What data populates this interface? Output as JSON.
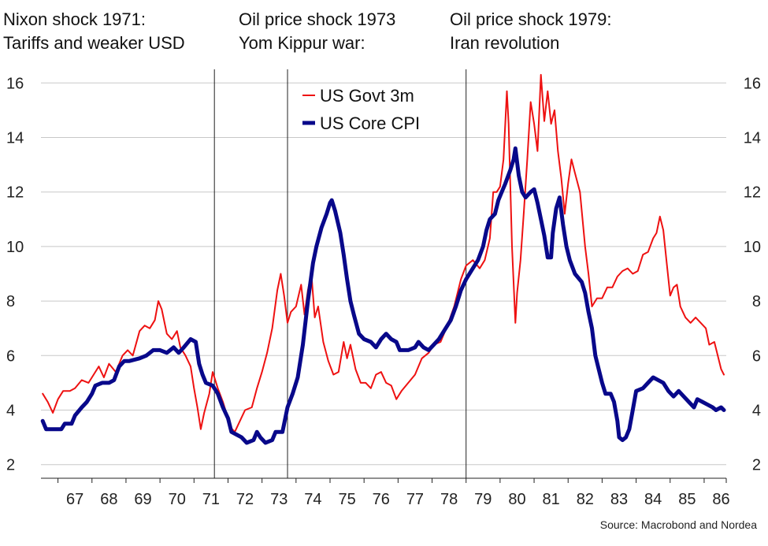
{
  "chart_data": {
    "type": "line",
    "title": "",
    "xlabel": "",
    "ylabel": "",
    "ylim": [
      1.5,
      16.5
    ],
    "xlim": [
      1966.5,
      1986.65
    ],
    "y_ticks": [
      2,
      4,
      6,
      8,
      10,
      12,
      14,
      16
    ],
    "y_tick_labels": [
      "2",
      "4",
      "6",
      "8",
      "10",
      "12",
      "14",
      "16"
    ],
    "x_ticks": [
      1967,
      1968,
      1969,
      1970,
      1971,
      1972,
      1973,
      1974,
      1975,
      1976,
      1977,
      1978,
      1979,
      1980,
      1981,
      1982,
      1983,
      1984,
      1985,
      1986
    ],
    "x_tick_labels": [
      "67",
      "68",
      "69",
      "70",
      "71",
      "72",
      "73",
      "74",
      "75",
      "76",
      "77",
      "78",
      "79",
      "80",
      "81",
      "82",
      "83",
      "84",
      "85",
      "86"
    ],
    "grid": "horizontal",
    "event_lines": [
      1971.6,
      1973.75,
      1979.0
    ],
    "annotations": [
      {
        "line1": "Nixon shock 1971:",
        "line2": "Tariffs and weaker USD"
      },
      {
        "line1": "Oil price shock 1973",
        "line2": "Yom Kippur war:"
      },
      {
        "line1": "Oil price shock 1979:",
        "line2": "Iran revolution"
      }
    ],
    "series": [
      {
        "name": "US Govt 3m",
        "color": "#ee1111",
        "style": "thin",
        "points": [
          [
            1966.55,
            4.6
          ],
          [
            1966.7,
            4.3
          ],
          [
            1966.85,
            3.9
          ],
          [
            1967.0,
            4.4
          ],
          [
            1967.15,
            4.7
          ],
          [
            1967.35,
            4.7
          ],
          [
            1967.5,
            4.8
          ],
          [
            1967.7,
            5.1
          ],
          [
            1967.9,
            5.0
          ],
          [
            1968.05,
            5.3
          ],
          [
            1968.2,
            5.6
          ],
          [
            1968.35,
            5.2
          ],
          [
            1968.5,
            5.7
          ],
          [
            1968.7,
            5.4
          ],
          [
            1968.9,
            6.0
          ],
          [
            1969.05,
            6.2
          ],
          [
            1969.2,
            6.0
          ],
          [
            1969.4,
            6.9
          ],
          [
            1969.55,
            7.1
          ],
          [
            1969.7,
            7.0
          ],
          [
            1969.85,
            7.3
          ],
          [
            1969.95,
            8.0
          ],
          [
            1970.05,
            7.7
          ],
          [
            1970.2,
            6.8
          ],
          [
            1970.35,
            6.6
          ],
          [
            1970.5,
            6.9
          ],
          [
            1970.6,
            6.3
          ],
          [
            1970.75,
            6.0
          ],
          [
            1970.9,
            5.6
          ],
          [
            1971.0,
            4.8
          ],
          [
            1971.1,
            4.1
          ],
          [
            1971.2,
            3.3
          ],
          [
            1971.3,
            3.9
          ],
          [
            1971.45,
            4.6
          ],
          [
            1971.55,
            5.4
          ],
          [
            1971.7,
            4.8
          ],
          [
            1971.85,
            4.3
          ],
          [
            1971.95,
            3.9
          ],
          [
            1972.05,
            3.4
          ],
          [
            1972.2,
            3.2
          ],
          [
            1972.35,
            3.6
          ],
          [
            1972.5,
            4.0
          ],
          [
            1972.7,
            4.1
          ],
          [
            1972.85,
            4.8
          ],
          [
            1973.0,
            5.4
          ],
          [
            1973.15,
            6.1
          ],
          [
            1973.3,
            7.0
          ],
          [
            1973.45,
            8.4
          ],
          [
            1973.55,
            9.0
          ],
          [
            1973.65,
            8.2
          ],
          [
            1973.75,
            7.2
          ],
          [
            1973.85,
            7.6
          ],
          [
            1974.0,
            7.8
          ],
          [
            1974.15,
            8.6
          ],
          [
            1974.25,
            7.5
          ],
          [
            1974.35,
            8.4
          ],
          [
            1974.45,
            9.0
          ],
          [
            1974.55,
            7.4
          ],
          [
            1974.65,
            7.8
          ],
          [
            1974.8,
            6.5
          ],
          [
            1974.95,
            5.8
          ],
          [
            1975.1,
            5.3
          ],
          [
            1975.25,
            5.4
          ],
          [
            1975.4,
            6.5
          ],
          [
            1975.5,
            5.9
          ],
          [
            1975.6,
            6.4
          ],
          [
            1975.75,
            5.5
          ],
          [
            1975.9,
            5.0
          ],
          [
            1976.05,
            5.0
          ],
          [
            1976.2,
            4.8
          ],
          [
            1976.35,
            5.3
          ],
          [
            1976.5,
            5.4
          ],
          [
            1976.65,
            5.0
          ],
          [
            1976.8,
            4.9
          ],
          [
            1976.95,
            4.4
          ],
          [
            1977.1,
            4.7
          ],
          [
            1977.3,
            5.0
          ],
          [
            1977.5,
            5.3
          ],
          [
            1977.7,
            5.9
          ],
          [
            1977.9,
            6.1
          ],
          [
            1978.05,
            6.4
          ],
          [
            1978.25,
            6.5
          ],
          [
            1978.45,
            7.1
          ],
          [
            1978.65,
            7.8
          ],
          [
            1978.85,
            8.8
          ],
          [
            1979.0,
            9.3
          ],
          [
            1979.2,
            9.5
          ],
          [
            1979.4,
            9.2
          ],
          [
            1979.55,
            9.5
          ],
          [
            1979.7,
            10.3
          ],
          [
            1979.8,
            12.0
          ],
          [
            1979.9,
            12.0
          ],
          [
            1980.0,
            12.2
          ],
          [
            1980.1,
            13.2
          ],
          [
            1980.2,
            15.7
          ],
          [
            1980.25,
            14.5
          ],
          [
            1980.35,
            10.0
          ],
          [
            1980.45,
            7.2
          ],
          [
            1980.5,
            8.3
          ],
          [
            1980.6,
            9.5
          ],
          [
            1980.7,
            11.3
          ],
          [
            1980.8,
            13.2
          ],
          [
            1980.9,
            15.3
          ],
          [
            1981.0,
            14.5
          ],
          [
            1981.1,
            13.5
          ],
          [
            1981.2,
            16.3
          ],
          [
            1981.3,
            14.6
          ],
          [
            1981.4,
            15.7
          ],
          [
            1981.5,
            14.5
          ],
          [
            1981.6,
            15.0
          ],
          [
            1981.7,
            13.5
          ],
          [
            1981.8,
            12.5
          ],
          [
            1981.9,
            11.2
          ],
          [
            1982.0,
            12.3
          ],
          [
            1982.1,
            13.2
          ],
          [
            1982.2,
            12.7
          ],
          [
            1982.35,
            12.0
          ],
          [
            1982.5,
            10.0
          ],
          [
            1982.6,
            9.0
          ],
          [
            1982.7,
            7.8
          ],
          [
            1982.85,
            8.1
          ],
          [
            1983.0,
            8.1
          ],
          [
            1983.15,
            8.5
          ],
          [
            1983.3,
            8.5
          ],
          [
            1983.45,
            8.9
          ],
          [
            1983.6,
            9.1
          ],
          [
            1983.75,
            9.2
          ],
          [
            1983.9,
            9.0
          ],
          [
            1984.05,
            9.1
          ],
          [
            1984.2,
            9.7
          ],
          [
            1984.35,
            9.8
          ],
          [
            1984.5,
            10.3
          ],
          [
            1984.6,
            10.5
          ],
          [
            1984.7,
            11.1
          ],
          [
            1984.8,
            10.6
          ],
          [
            1984.9,
            9.4
          ],
          [
            1985.0,
            8.2
          ],
          [
            1985.1,
            8.5
          ],
          [
            1985.2,
            8.6
          ],
          [
            1985.3,
            7.8
          ],
          [
            1985.45,
            7.4
          ],
          [
            1985.6,
            7.2
          ],
          [
            1985.75,
            7.4
          ],
          [
            1985.9,
            7.2
          ],
          [
            1986.05,
            7.0
          ],
          [
            1986.15,
            6.4
          ],
          [
            1986.3,
            6.5
          ],
          [
            1986.4,
            6.0
          ],
          [
            1986.5,
            5.5
          ],
          [
            1986.58,
            5.3
          ]
        ]
      },
      {
        "name": "US Core CPI",
        "color": "#08088a",
        "style": "thick",
        "points": [
          [
            1966.55,
            3.6
          ],
          [
            1966.65,
            3.3
          ],
          [
            1967.1,
            3.3
          ],
          [
            1967.2,
            3.5
          ],
          [
            1967.4,
            3.5
          ],
          [
            1967.5,
            3.8
          ],
          [
            1967.7,
            4.1
          ],
          [
            1967.85,
            4.3
          ],
          [
            1968.0,
            4.6
          ],
          [
            1968.1,
            4.9
          ],
          [
            1968.3,
            5.0
          ],
          [
            1968.5,
            5.0
          ],
          [
            1968.65,
            5.1
          ],
          [
            1968.8,
            5.6
          ],
          [
            1968.95,
            5.8
          ],
          [
            1969.1,
            5.8
          ],
          [
            1969.4,
            5.9
          ],
          [
            1969.6,
            6.0
          ],
          [
            1969.8,
            6.2
          ],
          [
            1970.0,
            6.2
          ],
          [
            1970.2,
            6.1
          ],
          [
            1970.4,
            6.3
          ],
          [
            1970.55,
            6.1
          ],
          [
            1970.7,
            6.3
          ],
          [
            1970.9,
            6.6
          ],
          [
            1971.05,
            6.5
          ],
          [
            1971.15,
            5.7
          ],
          [
            1971.25,
            5.3
          ],
          [
            1971.35,
            5.0
          ],
          [
            1971.55,
            4.9
          ],
          [
            1971.7,
            4.6
          ],
          [
            1971.85,
            4.1
          ],
          [
            1972.0,
            3.7
          ],
          [
            1972.1,
            3.2
          ],
          [
            1972.25,
            3.1
          ],
          [
            1972.4,
            3.0
          ],
          [
            1972.55,
            2.8
          ],
          [
            1972.75,
            2.9
          ],
          [
            1972.85,
            3.2
          ],
          [
            1972.95,
            3.0
          ],
          [
            1973.1,
            2.8
          ],
          [
            1973.3,
            2.9
          ],
          [
            1973.4,
            3.2
          ],
          [
            1973.6,
            3.2
          ],
          [
            1973.75,
            4.1
          ],
          [
            1973.9,
            4.6
          ],
          [
            1974.05,
            5.2
          ],
          [
            1974.2,
            6.4
          ],
          [
            1974.35,
            8.0
          ],
          [
            1974.5,
            9.4
          ],
          [
            1974.6,
            10.0
          ],
          [
            1974.75,
            10.7
          ],
          [
            1974.9,
            11.2
          ],
          [
            1975.0,
            11.6
          ],
          [
            1975.05,
            11.7
          ],
          [
            1975.15,
            11.3
          ],
          [
            1975.3,
            10.5
          ],
          [
            1975.4,
            9.7
          ],
          [
            1975.5,
            8.8
          ],
          [
            1975.6,
            8.0
          ],
          [
            1975.7,
            7.5
          ],
          [
            1975.85,
            6.8
          ],
          [
            1976.0,
            6.6
          ],
          [
            1976.2,
            6.5
          ],
          [
            1976.35,
            6.3
          ],
          [
            1976.5,
            6.6
          ],
          [
            1976.65,
            6.8
          ],
          [
            1976.8,
            6.6
          ],
          [
            1976.95,
            6.5
          ],
          [
            1977.05,
            6.2
          ],
          [
            1977.3,
            6.2
          ],
          [
            1977.5,
            6.3
          ],
          [
            1977.6,
            6.5
          ],
          [
            1977.75,
            6.3
          ],
          [
            1977.9,
            6.2
          ],
          [
            1978.05,
            6.4
          ],
          [
            1978.2,
            6.6
          ],
          [
            1978.4,
            7.0
          ],
          [
            1978.55,
            7.3
          ],
          [
            1978.7,
            7.8
          ],
          [
            1978.85,
            8.4
          ],
          [
            1979.0,
            8.8
          ],
          [
            1979.2,
            9.2
          ],
          [
            1979.35,
            9.5
          ],
          [
            1979.5,
            10.0
          ],
          [
            1979.6,
            10.6
          ],
          [
            1979.7,
            11.0
          ],
          [
            1979.85,
            11.2
          ],
          [
            1979.95,
            11.7
          ],
          [
            1980.05,
            12.0
          ],
          [
            1980.15,
            12.3
          ],
          [
            1980.3,
            12.8
          ],
          [
            1980.4,
            13.2
          ],
          [
            1980.45,
            13.6
          ],
          [
            1980.55,
            12.6
          ],
          [
            1980.65,
            12.0
          ],
          [
            1980.75,
            11.8
          ],
          [
            1980.9,
            12.0
          ],
          [
            1981.0,
            12.1
          ],
          [
            1981.1,
            11.6
          ],
          [
            1981.2,
            11.0
          ],
          [
            1981.3,
            10.4
          ],
          [
            1981.4,
            9.6
          ],
          [
            1981.5,
            9.6
          ],
          [
            1981.55,
            10.5
          ],
          [
            1981.65,
            11.4
          ],
          [
            1981.75,
            11.8
          ],
          [
            1981.85,
            10.8
          ],
          [
            1981.95,
            10.0
          ],
          [
            1982.05,
            9.5
          ],
          [
            1982.2,
            9.0
          ],
          [
            1982.4,
            8.7
          ],
          [
            1982.5,
            8.3
          ],
          [
            1982.6,
            7.6
          ],
          [
            1982.7,
            7.0
          ],
          [
            1982.8,
            6.0
          ],
          [
            1982.9,
            5.5
          ],
          [
            1983.0,
            5.0
          ],
          [
            1983.1,
            4.6
          ],
          [
            1983.25,
            4.6
          ],
          [
            1983.35,
            4.3
          ],
          [
            1983.45,
            3.6
          ],
          [
            1983.5,
            3.0
          ],
          [
            1983.6,
            2.9
          ],
          [
            1983.7,
            3.0
          ],
          [
            1983.8,
            3.3
          ],
          [
            1983.9,
            4.0
          ],
          [
            1984.0,
            4.7
          ],
          [
            1984.2,
            4.8
          ],
          [
            1984.35,
            5.0
          ],
          [
            1984.5,
            5.2
          ],
          [
            1984.65,
            5.1
          ],
          [
            1984.8,
            5.0
          ],
          [
            1984.95,
            4.7
          ],
          [
            1985.1,
            4.5
          ],
          [
            1985.25,
            4.7
          ],
          [
            1985.4,
            4.5
          ],
          [
            1985.55,
            4.3
          ],
          [
            1985.7,
            4.1
          ],
          [
            1985.8,
            4.4
          ],
          [
            1985.95,
            4.3
          ],
          [
            1986.1,
            4.2
          ],
          [
            1986.25,
            4.1
          ],
          [
            1986.35,
            4.0
          ],
          [
            1986.5,
            4.1
          ],
          [
            1986.58,
            4.0
          ]
        ]
      }
    ],
    "source": "Source: Macrobond and Nordea"
  }
}
